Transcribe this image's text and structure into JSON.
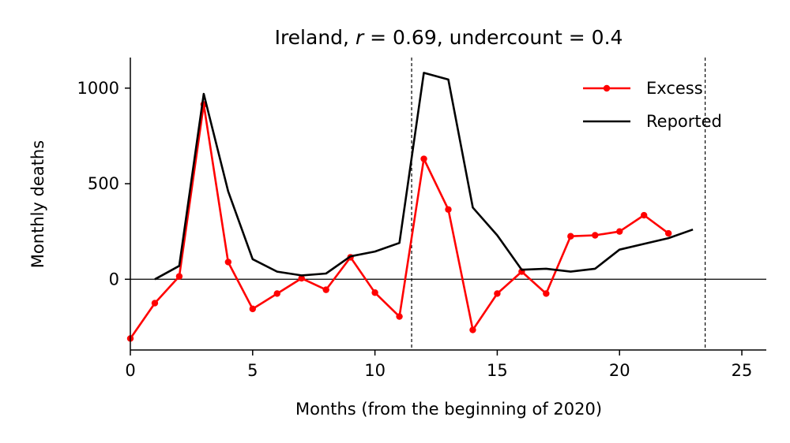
{
  "chart_data": {
    "type": "line",
    "title_parts": {
      "prefix": "Ireland, ",
      "r_symbol": "r",
      "r_value": " = 0.69, undercount = 0.4"
    },
    "xlabel": "Months (from the beginning of 2020)",
    "ylabel": "Monthly deaths",
    "xlim": [
      0,
      26
    ],
    "ylim": [
      -370,
      1160
    ],
    "xticks": [
      0,
      5,
      10,
      15,
      20,
      25
    ],
    "yticks": [
      0,
      500,
      1000
    ],
    "vlines": [
      11.5,
      23.5
    ],
    "hline": 0,
    "grid": false,
    "legend_position": "top-right",
    "series": [
      {
        "name": "Excess",
        "color": "#ff0000",
        "marker": "circle",
        "x": [
          0,
          1,
          2,
          3,
          4,
          5,
          6,
          7,
          8,
          9,
          10,
          11,
          12,
          13,
          14,
          15,
          16,
          17,
          18,
          19,
          20,
          21,
          22
        ],
        "y": [
          -310,
          -125,
          15,
          915,
          90,
          -155,
          -75,
          5,
          -55,
          115,
          -70,
          -195,
          630,
          365,
          -265,
          -75,
          40,
          -75,
          225,
          230,
          250,
          335,
          240
        ]
      },
      {
        "name": "Reported",
        "color": "#000000",
        "marker": "none",
        "x": [
          1,
          2,
          3,
          4,
          5,
          6,
          7,
          8,
          9,
          10,
          11,
          12,
          13,
          14,
          15,
          16,
          17,
          18,
          19,
          20,
          21,
          22,
          23
        ],
        "y": [
          0,
          70,
          970,
          460,
          105,
          40,
          20,
          30,
          120,
          145,
          190,
          1080,
          1045,
          375,
          230,
          50,
          55,
          40,
          55,
          155,
          185,
          215,
          260
        ]
      }
    ]
  }
}
